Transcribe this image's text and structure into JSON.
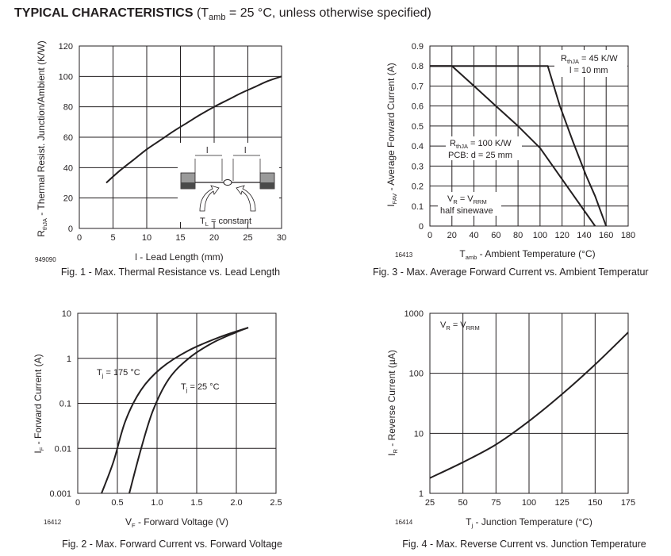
{
  "header": {
    "title_bold": "TYPICAL CHARACTERISTICS",
    "title_open": " (T",
    "title_sub": "amb",
    "title_rest": " = 25 °C, unless otherwise specified)"
  },
  "chart_data": [
    {
      "id": "fig1",
      "type": "line",
      "caption": "Fig. 1 - Max. Thermal Resistance vs. Lead Length",
      "xlabel": "l - Lead Length (mm)",
      "ylabel": {
        "pre": "R",
        "sub": "thJA",
        "post": " - Thermal Resist. Junction/Ambient (K/W)"
      },
      "code": "949090",
      "xlim": [
        0,
        30
      ],
      "ylim": [
        0,
        120
      ],
      "xticks": [
        0,
        5,
        10,
        15,
        20,
        25,
        30
      ],
      "yticks": [
        0,
        20,
        40,
        60,
        80,
        100,
        120
      ],
      "series": [
        {
          "name": "RthJA",
          "x": [
            4,
            6,
            8,
            10,
            12,
            14,
            16,
            18,
            20,
            22,
            24,
            26,
            28,
            30
          ],
          "y": [
            30,
            38,
            45,
            52,
            58,
            64,
            69.5,
            75,
            80,
            84.5,
            89,
            93,
            97,
            100
          ]
        }
      ],
      "annotations": {
        "l_label": "l",
        "tl_pre": "T",
        "tl_sub": "L",
        "tl_post": " = constant"
      }
    },
    {
      "id": "fig3",
      "type": "line",
      "caption": "Fig. 3 - Max. Average Forward Current vs. Ambient Temperatur",
      "xlabel": {
        "pre": "T",
        "sub": "amb",
        "post": " - Ambient Temperature (°C)"
      },
      "ylabel": {
        "pre": "I",
        "sub": "FAV",
        "post": " - Average Forward Current (A)"
      },
      "code": "16413",
      "xlim": [
        0,
        180
      ],
      "ylim": [
        0,
        0.9
      ],
      "xticks": [
        0,
        20,
        40,
        60,
        80,
        100,
        120,
        140,
        160,
        180
      ],
      "yticks": [
        0,
        0.1,
        0.2,
        0.3,
        0.4,
        0.5,
        0.6,
        0.7,
        0.8,
        0.9
      ],
      "ytick_labels": [
        "0",
        "0.1",
        "0.2",
        "0.3",
        "0.4",
        "0.5",
        "0.6",
        "0.7",
        "0.8",
        "0.9"
      ],
      "series": [
        {
          "name": "RthJA = 45 K/W, l = 10 mm",
          "x": [
            0,
            107,
            118,
            130,
            142,
            150,
            160
          ],
          "y": [
            0.8,
            0.8,
            0.6,
            0.42,
            0.25,
            0.15,
            0
          ]
        },
        {
          "name": "RthJA = 100 K/W, PCB: d = 25 mm",
          "x": [
            0,
            20,
            40,
            60,
            80,
            100,
            150
          ],
          "y": [
            0.8,
            0.8,
            0.7,
            0.6,
            0.5,
            0.39,
            0
          ]
        }
      ],
      "annotations": {
        "a1_pre": "R",
        "a1_sub": "thJA",
        "a1_post": " = 45 K/W",
        "a1_line2": "l = 10 mm",
        "a2_pre": "R",
        "a2_sub": "thJA",
        "a2_post": " = 100 K/W",
        "a2_line2": "PCB: d = 25 mm",
        "a3_pre": "V",
        "a3_sub": "R",
        "a3_mid": " = V",
        "a3_sub2": "RRM",
        "a3_line2": "half sinewave"
      }
    },
    {
      "id": "fig2",
      "type": "line",
      "scale": "log-y",
      "caption": "Fig. 2 - Max. Forward Current vs. Forward Voltage",
      "xlabel": {
        "pre": "V",
        "sub": "F",
        "post": " - Forward Voltage (V)"
      },
      "ylabel": {
        "pre": "I",
        "sub": "F",
        "post": " - Forward Current (A)"
      },
      "code": "16412",
      "xlim": [
        0,
        2.5
      ],
      "ylim": [
        0.001,
        10
      ],
      "xticks": [
        0,
        0.5,
        1.0,
        1.5,
        2.0,
        2.5
      ],
      "xtick_labels": [
        "0",
        "0.5",
        "1.0",
        "1.5",
        "2.0",
        "2.5"
      ],
      "yticks": [
        0.001,
        0.01,
        0.1,
        1,
        10
      ],
      "ytick_labels": [
        "0.001",
        "0.01",
        "0.1",
        "1",
        "10"
      ],
      "series": [
        {
          "name": "Tj = 175 °C",
          "x": [
            0.3,
            0.45,
            0.6,
            0.8,
            1.05,
            1.4,
            1.8,
            2.15
          ],
          "y": [
            0.001,
            0.005,
            0.04,
            0.2,
            0.6,
            1.5,
            3.0,
            4.8
          ]
        },
        {
          "name": "Tj = 25 °C",
          "x": [
            0.65,
            0.8,
            0.95,
            1.15,
            1.4,
            1.7,
            2.0,
            2.15
          ],
          "y": [
            0.001,
            0.01,
            0.07,
            0.35,
            1.0,
            2.2,
            3.8,
            4.8
          ]
        }
      ],
      "annotations": {
        "a1_pre": "T",
        "a1_sub": "j",
        "a1_post": " = 175 °C",
        "a2_pre": "T",
        "a2_sub": "j",
        "a2_post": " = 25 °C"
      }
    },
    {
      "id": "fig4",
      "type": "line",
      "scale": "log-y",
      "caption": "Fig. 4 - Max. Reverse Current vs. Junction Temperature",
      "xlabel": {
        "pre": "T",
        "sub": "j",
        "post": " - Junction Temperature (°C)"
      },
      "ylabel": {
        "pre": "I",
        "sub": "R",
        "post": " - Reverse Current (µA)"
      },
      "code": "16414",
      "xlim": [
        25,
        175
      ],
      "ylim": [
        1,
        1000
      ],
      "xticks": [
        25,
        50,
        75,
        100,
        125,
        150,
        175
      ],
      "yticks": [
        1,
        10,
        100,
        1000
      ],
      "ytick_labels": [
        "1",
        "10",
        "100",
        "1000"
      ],
      "series": [
        {
          "name": "IR",
          "x": [
            25,
            50,
            75,
            100,
            125,
            150,
            175
          ],
          "y": [
            1.8,
            3.3,
            6.5,
            16,
            45,
            140,
            480
          ]
        }
      ],
      "annotations": {
        "a1_pre": "V",
        "a1_sub": "R",
        "a1_mid": " = V",
        "a1_sub2": "RRM"
      }
    }
  ]
}
